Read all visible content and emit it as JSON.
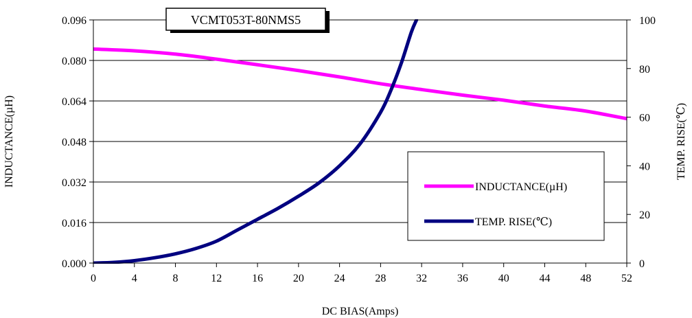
{
  "chart_data": {
    "type": "line",
    "title": "VCMT053T-80NMS5",
    "xlabel": "DC BIAS(Amps)",
    "ylabel_left": "INDUCTANCE(µH)",
    "ylabel_right": "TEMP. RISE(℃)",
    "xlim": [
      0,
      52
    ],
    "ylim_left": [
      0,
      0.096
    ],
    "ylim_right": [
      0,
      100
    ],
    "x_ticks": [
      "0",
      "4",
      "8",
      "12",
      "16",
      "20",
      "24",
      "28",
      "32",
      "36",
      "40",
      "44",
      "48",
      "52"
    ],
    "y_left_ticks": [
      "0.000",
      "0.016",
      "0.032",
      "0.048",
      "0.064",
      "0.080",
      "0.096"
    ],
    "y_right_ticks": [
      "0",
      "20",
      "40",
      "60",
      "80",
      "100"
    ],
    "grid": "horizontal",
    "legend_position": "lower-right",
    "series": [
      {
        "name": "INDUCTANCE(µH)",
        "axis": "left",
        "color": "#ff00ff",
        "x": [
          0,
          4,
          8,
          12,
          16,
          20,
          24,
          28,
          32,
          36,
          40,
          44,
          48,
          52
        ],
        "y": [
          0.0845,
          0.0838,
          0.0825,
          0.0805,
          0.0783,
          0.076,
          0.0735,
          0.0708,
          0.0685,
          0.0663,
          0.0643,
          0.062,
          0.06,
          0.057
        ]
      },
      {
        "name": "TEMP. RISE(℃)",
        "axis": "right",
        "color": "#000080",
        "x": [
          0,
          2,
          4,
          6,
          8,
          10,
          12,
          14,
          16,
          18,
          20,
          22,
          24,
          26,
          28,
          29,
          30,
          31,
          31.5
        ],
        "y": [
          0,
          0.3,
          1,
          2.2,
          3.8,
          6,
          9,
          13.5,
          18,
          22.5,
          27.5,
          33,
          40,
          49,
          62,
          71,
          82,
          95,
          100
        ]
      }
    ]
  }
}
